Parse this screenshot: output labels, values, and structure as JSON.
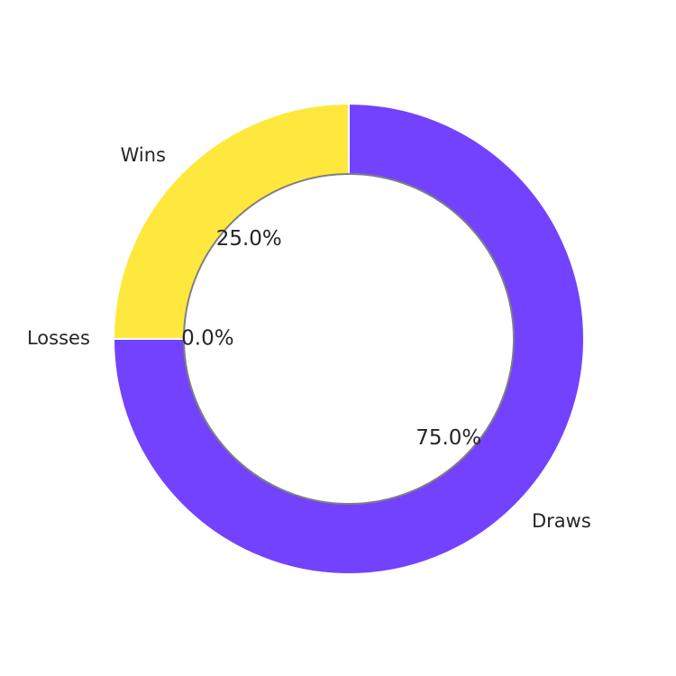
{
  "chart_data": {
    "type": "pie",
    "style": "donut",
    "start_angle_deg": 90,
    "direction": "counterclockwise",
    "legend": "none",
    "categories": [
      "Wins",
      "Losses",
      "Draws"
    ],
    "values": [
      25.0,
      0.0,
      75.0
    ],
    "percent_labels": [
      "25.0%",
      "0.0%",
      "75.0%"
    ],
    "colors": [
      "#ffe83d",
      "#6c3bfa",
      "#7342ff"
    ],
    "center_hole_edge_color": "#808080"
  }
}
